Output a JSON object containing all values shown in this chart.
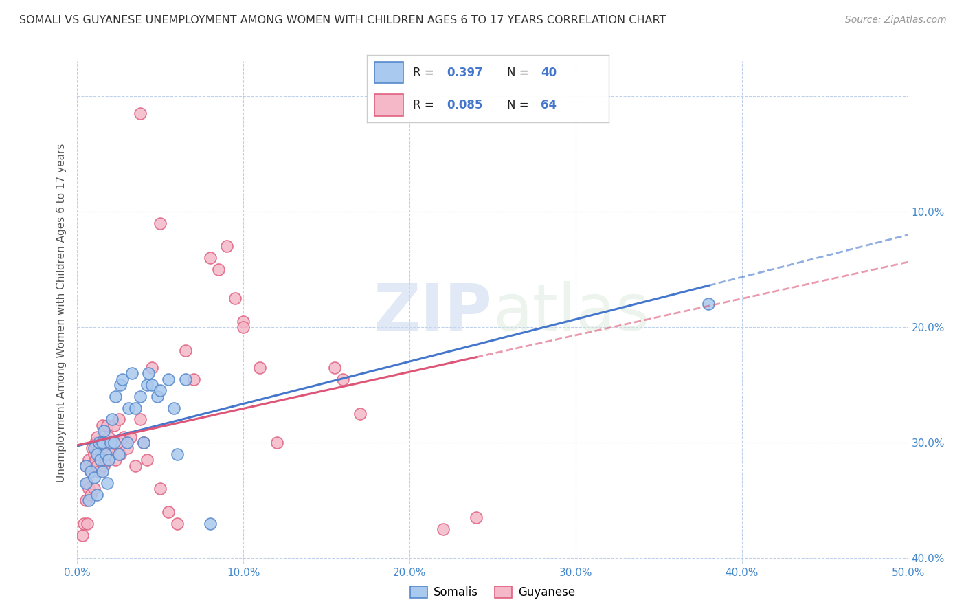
{
  "title": "SOMALI VS GUYANESE UNEMPLOYMENT AMONG WOMEN WITH CHILDREN AGES 6 TO 17 YEARS CORRELATION CHART",
  "source": "Source: ZipAtlas.com",
  "ylabel": "Unemployment Among Women with Children Ages 6 to 17 years",
  "xlim": [
    0.0,
    0.5
  ],
  "ylim": [
    -0.005,
    0.43
  ],
  "xticks": [
    0.0,
    0.1,
    0.2,
    0.3,
    0.4,
    0.5
  ],
  "yticks": [
    0.0,
    0.1,
    0.2,
    0.3,
    0.4
  ],
  "xticklabels": [
    "0.0%",
    "10.0%",
    "20.0%",
    "30.0%",
    "40.0%",
    "50.0%"
  ],
  "yticklabels_right": [
    "40.0%",
    "30.0%",
    "20.0%",
    "10.0%",
    ""
  ],
  "somali_color": "#aac9ee",
  "guyanese_color": "#f4b8c8",
  "somali_edge_color": "#5588cc",
  "guyanese_edge_color": "#e06080",
  "somali_line_color": "#4477cc",
  "guyanese_line_color": "#dd5577",
  "somali_R": 0.397,
  "somali_N": 40,
  "guyanese_R": 0.085,
  "guyanese_N": 64,
  "watermark_zip": "ZIP",
  "watermark_atlas": "atlas",
  "legend_somali_label": "Somalis",
  "legend_guyanese_label": "Guyanese",
  "somali_x": [
    0.005,
    0.005,
    0.007,
    0.008,
    0.01,
    0.01,
    0.012,
    0.012,
    0.013,
    0.014,
    0.015,
    0.015,
    0.016,
    0.017,
    0.018,
    0.019,
    0.02,
    0.021,
    0.022,
    0.023,
    0.025,
    0.026,
    0.027,
    0.03,
    0.031,
    0.033,
    0.035,
    0.038,
    0.04,
    0.042,
    0.043,
    0.045,
    0.048,
    0.05,
    0.055,
    0.058,
    0.06,
    0.065,
    0.08,
    0.38
  ],
  "somali_y": [
    0.065,
    0.08,
    0.05,
    0.075,
    0.07,
    0.095,
    0.055,
    0.09,
    0.1,
    0.085,
    0.075,
    0.1,
    0.11,
    0.09,
    0.065,
    0.085,
    0.1,
    0.12,
    0.1,
    0.14,
    0.09,
    0.15,
    0.155,
    0.1,
    0.13,
    0.16,
    0.13,
    0.14,
    0.1,
    0.15,
    0.16,
    0.15,
    0.14,
    0.145,
    0.155,
    0.13,
    0.09,
    0.155,
    0.03,
    0.22
  ],
  "guyanese_x": [
    0.003,
    0.004,
    0.005,
    0.005,
    0.006,
    0.006,
    0.007,
    0.007,
    0.008,
    0.008,
    0.009,
    0.009,
    0.01,
    0.01,
    0.011,
    0.011,
    0.012,
    0.012,
    0.013,
    0.013,
    0.014,
    0.015,
    0.015,
    0.016,
    0.016,
    0.017,
    0.018,
    0.018,
    0.019,
    0.02,
    0.021,
    0.022,
    0.023,
    0.024,
    0.025,
    0.026,
    0.028,
    0.03,
    0.032,
    0.035,
    0.038,
    0.04,
    0.042,
    0.045,
    0.05,
    0.055,
    0.06,
    0.065,
    0.07,
    0.08,
    0.085,
    0.09,
    0.095,
    0.1,
    0.11,
    0.12,
    0.155,
    0.16,
    0.22,
    0.24,
    0.038,
    0.05,
    0.1,
    0.17
  ],
  "guyanese_y": [
    0.02,
    0.03,
    0.05,
    0.08,
    0.03,
    0.065,
    0.06,
    0.085,
    0.055,
    0.075,
    0.08,
    0.095,
    0.06,
    0.09,
    0.085,
    0.1,
    0.08,
    0.105,
    0.075,
    0.095,
    0.1,
    0.09,
    0.115,
    0.1,
    0.08,
    0.085,
    0.095,
    0.115,
    0.105,
    0.09,
    0.1,
    0.115,
    0.085,
    0.1,
    0.12,
    0.09,
    0.105,
    0.095,
    0.105,
    0.08,
    0.12,
    0.1,
    0.085,
    0.165,
    0.06,
    0.04,
    0.03,
    0.18,
    0.155,
    0.26,
    0.25,
    0.27,
    0.225,
    0.205,
    0.165,
    0.1,
    0.165,
    0.155,
    0.025,
    0.035,
    0.385,
    0.29,
    0.2,
    0.125
  ]
}
